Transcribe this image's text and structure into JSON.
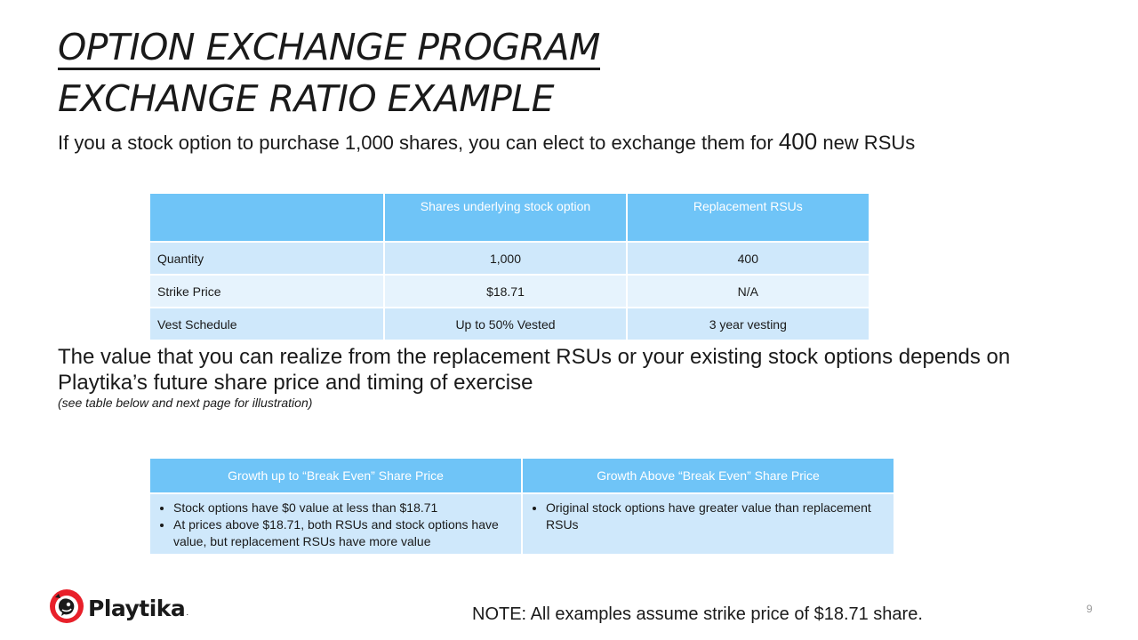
{
  "title": {
    "line1": "OPTION EXCHANGE PROGRAM",
    "line2": "EXCHANGE RATIO EXAMPLE"
  },
  "subtitle": {
    "before": "If you a stock option to purchase 1,000 shares, you can elect to exchange them for ",
    "highlight": "400",
    "after": " new RSUs"
  },
  "table1": {
    "headers": [
      "",
      "Shares underlying  stock option",
      "Replacement RSUs"
    ],
    "rows": [
      {
        "label": "Quantity",
        "option": "1,000",
        "rsu": "400"
      },
      {
        "label": "Strike Price",
        "option": "$18.71",
        "rsu": "N/A"
      },
      {
        "label": "Vest Schedule",
        "option": "Up to 50% Vested",
        "rsu": "3 year vesting"
      }
    ]
  },
  "paragraph": "The value that you can realize from the replacement RSUs or your existing stock options depends on Playtika’s future share price and timing of exercise",
  "paragraph_note": "(see table below and next page for illustration)",
  "table2": {
    "headers": [
      "Growth up to “Break Even” Share Price",
      "Growth Above “Break Even” Share Price"
    ],
    "col1_bullets": [
      "Stock options have $0 value at less than $18.71",
      "At prices above $18.71, both RSUs and stock options have value, but replacement RSUs have more value"
    ],
    "col2_bullets": [
      "Original stock options have greater value than replacement RSUs"
    ]
  },
  "logo": {
    "text": "Playtika",
    "dot": ".",
    "icon": "playtika-logo-icon",
    "accent": "#e8202a"
  },
  "page_number": "9",
  "footer_note": "NOTE:  All examples assume strike price of $18.71 share.",
  "colors": {
    "header_blue": "#6fc4f7",
    "row_light": "#cfe8fb",
    "row_lighter": "#e6f3fd"
  }
}
